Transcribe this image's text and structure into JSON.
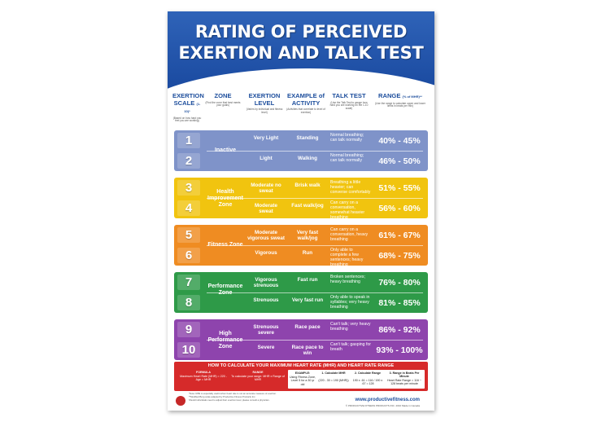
{
  "title_line1": "RATING OF PERCEIVED",
  "title_line2": "EXERTION AND TALK TEST",
  "headers": {
    "scale": "EXERTION SCALE",
    "scale_suffix": "(1-10)*",
    "scale_sub": "(Based on how hard you feel you are working)",
    "zone": "ZONE",
    "zone_sub": "(Find the zone that best meets your goals)",
    "level": "EXERTION LEVEL",
    "level_sub": "(Varies by individual and fitness level)",
    "activity": "EXAMPLE of ACTIVITY",
    "activity_sub": "(Activities that correlate to level of exertion)",
    "talk": "TALK TEST",
    "talk_sub": "(Use the Talk Test to gauge how hard you are working on the 1-10 scale)",
    "range": "RANGE",
    "range_suffix": "(% of MHR)**",
    "range_sub": "(Use the range to calculate upper and lower limits in beats per min)"
  },
  "rows": [
    {
      "num": "1",
      "level": "Very Light",
      "activity": "Standing",
      "talk": "Normal breathing; can talk normally",
      "range": "40% - 45%"
    },
    {
      "num": "2",
      "level": "Light",
      "activity": "Walking",
      "talk": "Normal breathing; can talk normally",
      "range": "46% - 50%"
    },
    {
      "num": "3",
      "level": "Moderate no sweat",
      "activity": "Brisk walk",
      "talk": "Breathing a little heavier; can converse comfortably",
      "range": "51% - 55%"
    },
    {
      "num": "4",
      "level": "Moderate sweat",
      "activity": "Fast walk/jog",
      "talk": "Can carry on a conversation, somewhat heavier breathing",
      "range": "56% - 60%"
    },
    {
      "num": "5",
      "level": "Moderate vigorous sweat",
      "activity": "Very fast walk/jog",
      "talk": "Can carry on a conversation, heavy breathing",
      "range": "61% - 67%"
    },
    {
      "num": "6",
      "level": "Vigorous",
      "activity": "Run",
      "talk": "Only able to complete a few sentences; heavy breathing",
      "range": "68% - 75%"
    },
    {
      "num": "7",
      "level": "Vigorous strenuous",
      "activity": "Fast run",
      "talk": "Broken sentences; heavy breathing",
      "range": "76% - 80%"
    },
    {
      "num": "8",
      "level": "Strenuous",
      "activity": "Very fast run",
      "talk": "Only able to speak in syllables; very heavy breathing",
      "range": "81% - 85%"
    },
    {
      "num": "9",
      "level": "Strenuous severe",
      "activity": "Race pace",
      "talk": "Can't talk; very heavy breathing",
      "range": "86% - 92%"
    },
    {
      "num": "10",
      "level": "Severe",
      "activity": "Race pace to win",
      "talk": "Can't talk; gasping for breath",
      "range": "93% - 100%"
    }
  ],
  "zones": [
    {
      "name": "Inactive",
      "color": "#7f93c9"
    },
    {
      "name": "Health Improvement Zone",
      "color": "#f1c40f"
    },
    {
      "name": "Fitness Zone",
      "color": "#ef8c22"
    },
    {
      "name": "Performance Zone",
      "color": "#2e9a48"
    },
    {
      "name": "High Performance Zone",
      "color": "#8e44ad"
    }
  ],
  "mhr": {
    "title": "HOW TO CALCULATE YOUR MAXIMUM HEART RATE (MHR) AND HEART RATE RANGE",
    "formula_label": "FORMULA",
    "formula_text": "Maximum Heart Rate (MHR) = 220 - Age = MHR",
    "range_label": "RANGE",
    "range_text": "To calculate your range: MHR x Range of MHR",
    "example_label": "EXAMPLE:",
    "example_text": "Using Fitness Zone, Level 5 for a 30 yr old",
    "step1": "1. Calculate MHR",
    "step1_text": "(220 - 30 = 190 (MHR))",
    "step2": "2. Calculate Range",
    "step2_text": "190 x .61 = 116 / 190 x .67 = 128",
    "step3": "3. Range in Beats Per Minute",
    "step3_text": "Heart Rate Range = 116 ~ 128 beats per minute",
    "note1": "*Note: RPE is especially useful when heart rate is not an accurate measure of exertion.",
    "note2": "**Modified Borg scale adapted by Productive Fitness Products Inc.",
    "note3": "Should individuals need to adjust their exertion level, please consult a physician."
  },
  "footer": {
    "url": "www.productivefitness.com",
    "copyright": "© PRODUCTIVE FITNESS PRODUCTS INC. 2010    Made in Canada"
  }
}
